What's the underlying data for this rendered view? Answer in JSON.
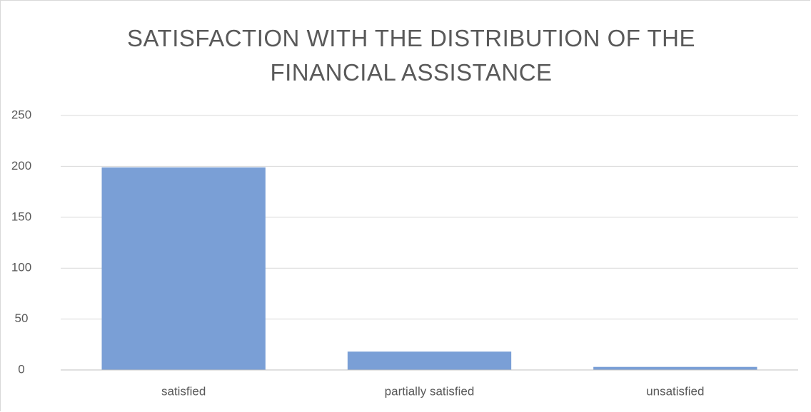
{
  "chart_data": {
    "type": "bar",
    "title": "SATISFACTION WITH THE DISTRIBUTION OF THE FINANCIAL ASSISTANCE",
    "categories": [
      "satisfied",
      "partially satisfied",
      "unsatisfied"
    ],
    "values": [
      199,
      18,
      3
    ],
    "color": "#7a9fd6",
    "ylim": [
      0,
      250
    ],
    "yticks": [
      0,
      50,
      100,
      150,
      200,
      250
    ],
    "grid": true
  }
}
